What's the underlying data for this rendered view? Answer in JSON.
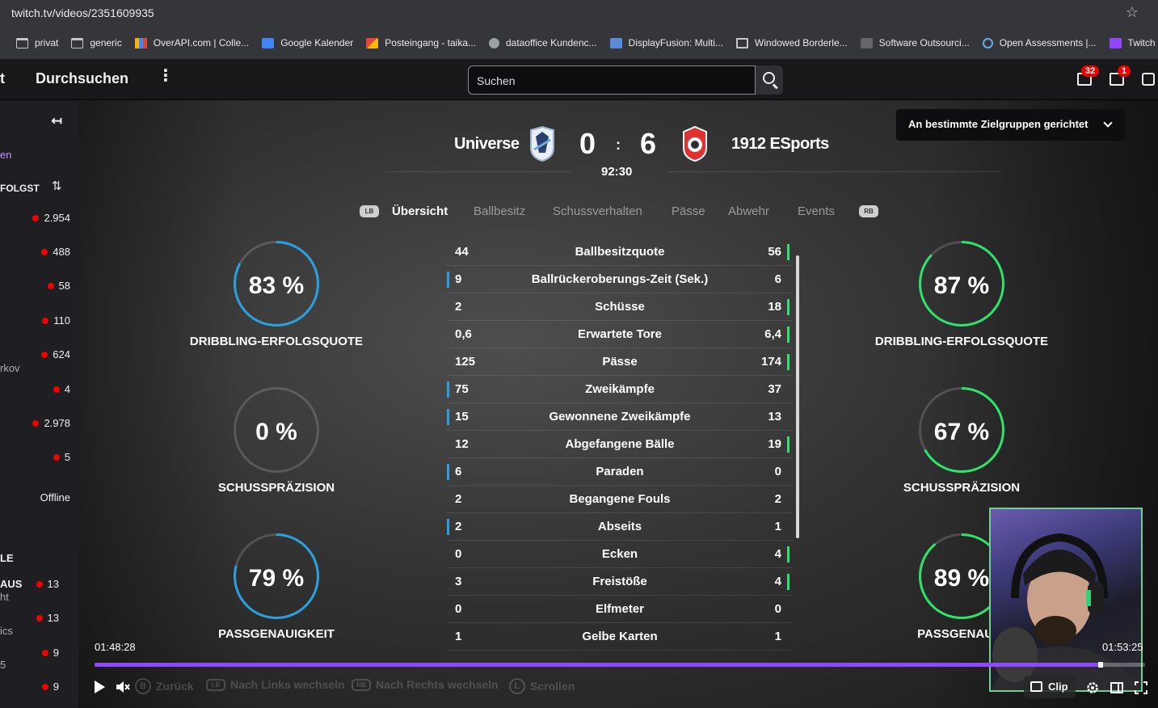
{
  "browser": {
    "url": "twitch.tv/videos/2351609935",
    "bookmarks": [
      {
        "label": "privat",
        "icon": "folder-icon"
      },
      {
        "label": "generic",
        "icon": "folder-icon"
      },
      {
        "label": "OverAPI.com | Colle...",
        "icon": "overapi-icon"
      },
      {
        "label": "Google Kalender",
        "icon": "calendar-icon"
      },
      {
        "label": "Posteingang - taika...",
        "icon": "gmail-icon"
      },
      {
        "label": "dataoffice Kundenc...",
        "icon": "globe-icon"
      },
      {
        "label": "DisplayFusion: Multi...",
        "icon": "displayfusion-icon"
      },
      {
        "label": "Windowed Borderle...",
        "icon": "monitor-icon"
      },
      {
        "label": "Software Outsourci...",
        "icon": "xb-icon"
      },
      {
        "label": "Open Assessments |...",
        "icon": "assessments-icon"
      },
      {
        "label": "Twitch",
        "icon": "twitch-icon"
      }
    ]
  },
  "topnav": {
    "logo_fragment": "t",
    "browse_label": "Durchsuchen",
    "search_placeholder": "Suchen",
    "inbox_badge": "32",
    "notifications_badge": "1"
  },
  "sidebar": {
    "en_fragment": "en",
    "followed_header": "FOLGST",
    "viewer_counts": [
      "2.954",
      "488",
      "58",
      "110",
      "624",
      "4",
      "2.978",
      "5"
    ],
    "offline_label": "Offline",
    "name_fragment": "rkov",
    "section_fragment": "LE",
    "aus_fragment": "AUS",
    "ht_fragment": "ht",
    "ics_fragment": "ics",
    "five_fragment": "5",
    "lower_counts": [
      "13",
      "13",
      "9",
      "9"
    ]
  },
  "video": {
    "target_button": "An bestimmte Zielgruppen gerichtet",
    "home_team": "Universe",
    "away_team": "1912 ESports",
    "home_score": "0",
    "away_score": "6",
    "score_separator": ":",
    "match_time": "92:30",
    "tabs": {
      "lb": "LB",
      "rb": "RB",
      "items": [
        "Übersicht",
        "Ballbesitz",
        "Schussverhalten",
        "Pässe",
        "Abwehr",
        "Events"
      ]
    },
    "stats": [
      {
        "left": "44",
        "label": "Ballbesitzquote",
        "right": "56",
        "leader": "right"
      },
      {
        "left": "9",
        "label": "Ballrückeroberungs-Zeit (Sek.)",
        "right": "6",
        "leader": "left"
      },
      {
        "left": "2",
        "label": "Schüsse",
        "right": "18",
        "leader": "right"
      },
      {
        "left": "0,6",
        "label": "Erwartete Tore",
        "right": "6,4",
        "leader": "right"
      },
      {
        "left": "125",
        "label": "Pässe",
        "right": "174",
        "leader": "right"
      },
      {
        "left": "75",
        "label": "Zweikämpfe",
        "right": "37",
        "leader": "left"
      },
      {
        "left": "15",
        "label": "Gewonnene Zweikämpfe",
        "right": "13",
        "leader": "left"
      },
      {
        "left": "12",
        "label": "Abgefangene Bälle",
        "right": "19",
        "leader": "right"
      },
      {
        "left": "6",
        "label": "Paraden",
        "right": "0",
        "leader": "left"
      },
      {
        "left": "2",
        "label": "Begangene Fouls",
        "right": "2",
        "leader": "none"
      },
      {
        "left": "2",
        "label": "Abseits",
        "right": "1",
        "leader": "left"
      },
      {
        "left": "0",
        "label": "Ecken",
        "right": "4",
        "leader": "right"
      },
      {
        "left": "3",
        "label": "Freistöße",
        "right": "4",
        "leader": "right"
      },
      {
        "left": "0",
        "label": "Elfmeter",
        "right": "0",
        "leader": "none"
      },
      {
        "left": "1",
        "label": "Gelbe Karten",
        "right": "1",
        "leader": "none"
      }
    ],
    "home_rings": [
      {
        "value": 83,
        "text": "83 %",
        "label": "DRIBBLING-ERFOLGSQUOTE"
      },
      {
        "value": 0,
        "text": "0 %",
        "label": "SCHUSSPRÄZISION"
      },
      {
        "value": 79,
        "text": "79 %",
        "label": "PASSGENAUIGKEIT"
      }
    ],
    "away_rings": [
      {
        "value": 87,
        "text": "87 %",
        "label": "DRIBBLING-ERFOLGSQUOTE"
      },
      {
        "value": 67,
        "text": "67 %",
        "label": "SCHUSSPRÄZISION"
      },
      {
        "value": 89,
        "text": "89 %",
        "label": "PASSGENAUIG"
      }
    ],
    "colors": {
      "home": "#2aa0e0",
      "away": "#2ee36b",
      "accent": "#9147ff"
    },
    "time_current": "01:48:28",
    "time_end": "01:53:25",
    "progress": 0.958,
    "hints": [
      {
        "key": "B",
        "label": "Zurück"
      },
      {
        "key": "LB",
        "label": "Nach Links wechseln"
      },
      {
        "key": "RB",
        "label": "Nach Rechts wechseln"
      },
      {
        "key": "L",
        "label": "Scrollen"
      }
    ],
    "clip_label": "Clip"
  }
}
